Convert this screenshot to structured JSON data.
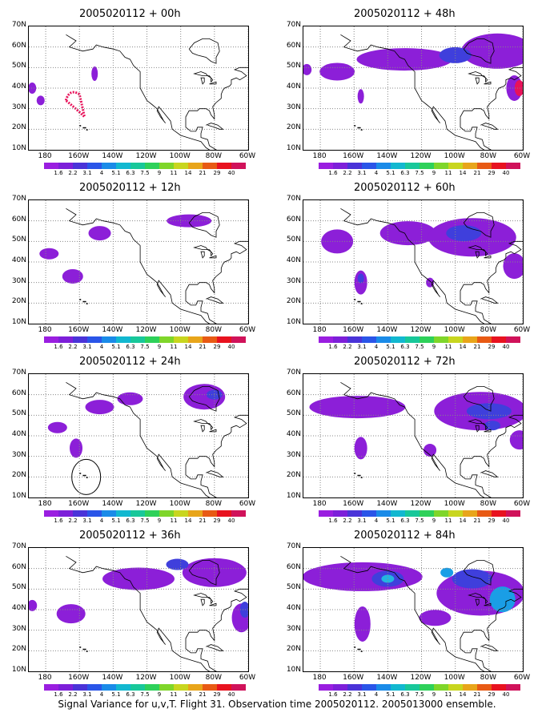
{
  "footer": "Signal Variance for u,v,T. Flight 31. Observation time 2005020112. 2005013000 ensemble.",
  "lat_labels": [
    "70N",
    "60N",
    "50N",
    "40N",
    "30N",
    "20N",
    "10N"
  ],
  "lon_labels": [
    "180",
    "160W",
    "140W",
    "120W",
    "100W",
    "80W",
    "60W"
  ],
  "colorbar": {
    "labels": [
      "1.6",
      "2.2",
      "3.1",
      "4",
      "5.1",
      "6.3",
      "7.5",
      "9",
      "11",
      "14",
      "21",
      "29",
      "40"
    ],
    "colors": [
      "#9a1ee0",
      "#7d1fd9",
      "#4a33d8",
      "#2a55e8",
      "#1a8be8",
      "#12b8d0",
      "#18c89a",
      "#2ed15a",
      "#7fd62a",
      "#c8d61f",
      "#e8a51a",
      "#e85a14",
      "#e8121f",
      "#d0125a"
    ]
  },
  "panels": [
    {
      "title": "2005020112 + 00h"
    },
    {
      "title": "2005020112 + 48h"
    },
    {
      "title": "2005020112 + 12h"
    },
    {
      "title": "2005020112 + 60h"
    },
    {
      "title": "2005020112 + 24h"
    },
    {
      "title": "2005020112 + 72h"
    },
    {
      "title": "2005020112 + 36h"
    },
    {
      "title": "2005020112 + 84h"
    }
  ],
  "colors": {
    "purple": "#8c1fd8",
    "blue": "#3f3fdc",
    "lightblue": "#1a9ee6",
    "cyan": "#23b5e0",
    "red": "#e8125a"
  }
}
